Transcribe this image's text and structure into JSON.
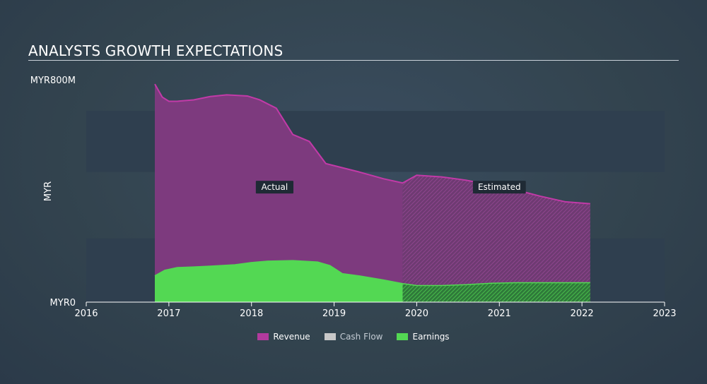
{
  "title": "ANALYSTS GROWTH EXPECTATIONS",
  "colors": {
    "revenue": "#c23aa8",
    "revenue_fill": "#7d3a7e",
    "cash_flow": "#c8c8c8",
    "earnings": "#53d853",
    "grid_band": "#2f3f4f",
    "axis": "#ffffff"
  },
  "legend": [
    {
      "key": "revenue",
      "label": "Revenue",
      "color": "#b23a9e",
      "active": true
    },
    {
      "key": "cash_flow",
      "label": "Cash Flow",
      "color": "#c8c8c8",
      "active": false
    },
    {
      "key": "earnings",
      "label": "Earnings",
      "color": "#53d853",
      "active": true
    }
  ],
  "chart_data": {
    "type": "area",
    "ylabel": "MYR",
    "y_tick_labels": [
      "MYR0",
      "MYR800M"
    ],
    "ylim": [
      0,
      800
    ],
    "xlim": [
      2016,
      2023
    ],
    "x_ticks": [
      2016,
      2017,
      2018,
      2019,
      2020,
      2021,
      2022,
      2023
    ],
    "x_tick_labels": [
      "2016",
      "2017",
      "2018",
      "2019",
      "2020",
      "2021",
      "2022",
      "2023"
    ],
    "grid_bands": [
      [
        0,
        230
      ],
      [
        470,
        690
      ]
    ],
    "actual_end": 2019.83,
    "annotations": [
      {
        "text": "Actual",
        "x": 2018.28,
        "y": 415
      },
      {
        "text": "Estimated",
        "x": 2021.0,
        "y": 415
      }
    ],
    "series": [
      {
        "name": "Revenue",
        "key": "revenue",
        "x": [
          2016.83,
          2016.92,
          2017.0,
          2017.1,
          2017.3,
          2017.5,
          2017.7,
          2017.95,
          2018.1,
          2018.3,
          2018.5,
          2018.7,
          2018.9,
          2019.1,
          2019.3,
          2019.6,
          2019.83,
          2020.0,
          2020.3,
          2020.6,
          2020.9,
          2021.2,
          2021.5,
          2021.8,
          2022.1
        ],
        "y": [
          787,
          740,
          725,
          725,
          730,
          742,
          748,
          744,
          730,
          700,
          605,
          580,
          500,
          485,
          470,
          445,
          430,
          458,
          452,
          440,
          422,
          405,
          382,
          362,
          355
        ]
      },
      {
        "name": "Earnings",
        "key": "earnings",
        "x": [
          2016.83,
          2016.95,
          2017.1,
          2017.3,
          2017.5,
          2017.8,
          2018.0,
          2018.2,
          2018.5,
          2018.8,
          2018.95,
          2019.1,
          2019.3,
          2019.6,
          2019.83,
          2020.0,
          2020.3,
          2020.6,
          2020.9,
          2021.2,
          2021.5,
          2021.8,
          2022.1
        ],
        "y": [
          95,
          115,
          125,
          127,
          130,
          135,
          143,
          148,
          150,
          145,
          132,
          103,
          95,
          80,
          67,
          60,
          60,
          63,
          68,
          70,
          70,
          70,
          70
        ]
      }
    ]
  }
}
